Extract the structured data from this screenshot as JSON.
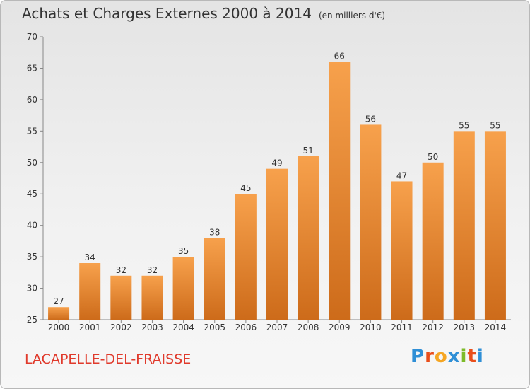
{
  "header": {
    "title": "Achats et Charges Externes 2000 à 2014",
    "unit": "(en milliers d'€)"
  },
  "commune": "LACAPELLE-DEL-FRAISSE",
  "logo": {
    "text": "Proxiti",
    "colors": [
      "#2f8fd6",
      "#e94e1b",
      "#f5a623",
      "#2f8fd6",
      "#7dbb2a",
      "#e94e1b",
      "#2f8fd6"
    ]
  },
  "chart_data": {
    "type": "bar",
    "categories": [
      "2000",
      "2001",
      "2002",
      "2003",
      "2004",
      "2005",
      "2006",
      "2007",
      "2008",
      "2009",
      "2010",
      "2011",
      "2012",
      "2013",
      "2014"
    ],
    "values": [
      27,
      34,
      32,
      32,
      35,
      38,
      45,
      49,
      51,
      66,
      56,
      47,
      50,
      55,
      55
    ],
    "ylim": [
      25,
      70
    ],
    "yticks": [
      25,
      30,
      35,
      40,
      45,
      50,
      55,
      60,
      65,
      70
    ],
    "bar_color_top": "#f7a14c",
    "bar_color_bottom": "#cd6b1a",
    "grid": false
  }
}
